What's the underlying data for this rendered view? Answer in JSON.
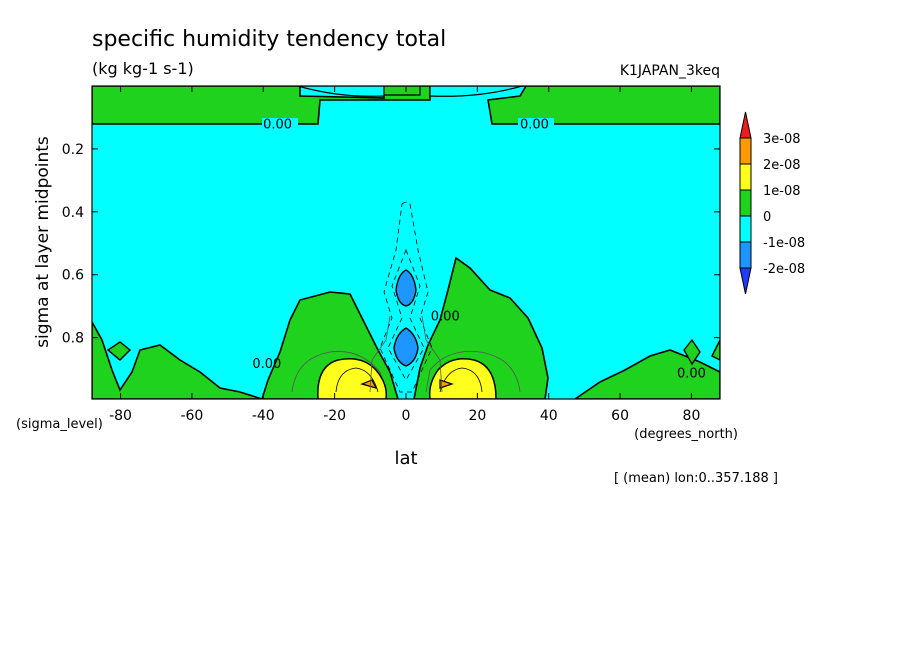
{
  "chart_data": {
    "type": "heatmap",
    "title": "specific humidity tendency total",
    "units": "(kg kg-1 s-1)",
    "run_label": "K1JAPAN_3keq",
    "xlabel": "lat",
    "ylabel": "sigma at layer midpoints",
    "x_unit_label": "(degrees_north)",
    "y_unit_label": "(sigma_level)",
    "footnote": "[ (mean) lon:0..357.188 ]",
    "xlim": [
      -88,
      88
    ],
    "ylim": [
      0.995,
      0.0
    ],
    "x_ticks": [
      -80,
      -60,
      -40,
      -20,
      0,
      20,
      40,
      60,
      80
    ],
    "x_tick_labels": [
      "-80",
      "-60",
      "-40",
      "-20",
      "0",
      "20",
      "40",
      "60",
      "80"
    ],
    "y_ticks": [
      0.2,
      0.4,
      0.6,
      0.8
    ],
    "y_tick_labels": [
      "0.2",
      "0.4",
      "0.6",
      "0.8"
    ],
    "levels": [
      -2e-08,
      -1e-08,
      0,
      1e-08,
      2e-08,
      3e-08
    ],
    "colorbar": {
      "labels": [
        "3e-08",
        "2e-08",
        "1e-08",
        "0",
        "-1e-08",
        "-2e-08"
      ],
      "colors": [
        "#ee1c1c",
        "#ff9b00",
        "#ffff1e",
        "#1ed21e",
        "#00ffff",
        "#1e96ff",
        "#1e3cff"
      ]
    },
    "contour_labels": [
      {
        "text": "0.00",
        "lat": -36,
        "sigma": 0.12
      },
      {
        "text": "0.00",
        "lat": 36,
        "sigma": 0.12
      },
      {
        "text": "0.00",
        "lat": 11,
        "sigma": 0.73
      },
      {
        "text": "0.00",
        "lat": -39,
        "sigma": 0.88
      },
      {
        "text": "0.00",
        "lat": 80,
        "sigma": 0.91
      }
    ],
    "fields": {
      "background": "-1e-08..0",
      "upper_band": {
        "range": "0..1e-08",
        "sigma": [
          0.0,
          0.11
        ]
      },
      "lower_regions": [
        "0..1e-08 over lat -80..40 and -20..50 below sigma 0.55",
        "1e-08..2e-08 near lat ±12, sigma 0.92",
        "2e-08..3e-08 small core near lat ±12, sigma 0.95",
        "-2e-08..-1e-08 near lat 0, sigma 0.65 and 0.83"
      ]
    }
  }
}
